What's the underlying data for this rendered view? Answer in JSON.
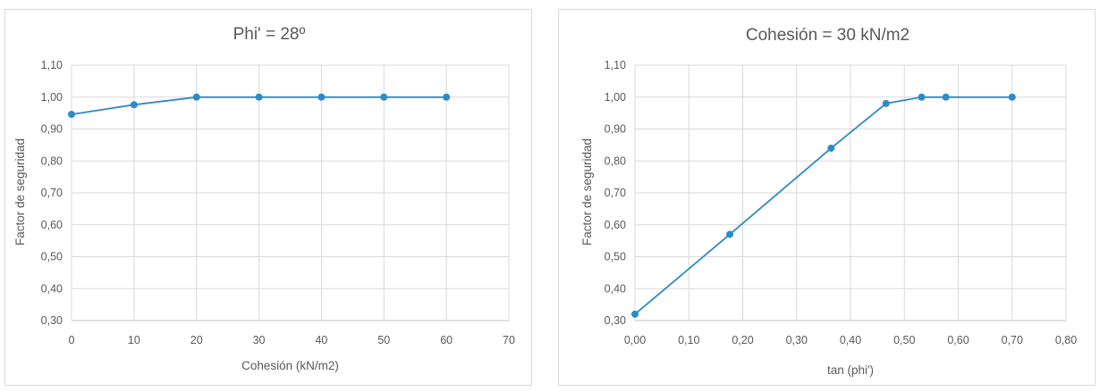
{
  "chart_data": [
    {
      "type": "line",
      "title": "Phi' = 28º",
      "xlabel": "Cohesión (kN/m2)",
      "ylabel": "Factor de seguridad",
      "xlim": [
        0,
        70
      ],
      "ylim": [
        0.3,
        1.1
      ],
      "x_ticks": [
        "0",
        "10",
        "20",
        "30",
        "40",
        "50",
        "60",
        "70"
      ],
      "y_ticks": [
        "0,30",
        "0,40",
        "0,50",
        "0,60",
        "0,70",
        "0,80",
        "0,90",
        "1,00",
        "1,10"
      ],
      "grid": true,
      "color": "#2e8bc9",
      "series": [
        {
          "x": [
            0,
            10,
            20,
            30,
            40,
            50,
            60
          ],
          "y": [
            0.946,
            0.976,
            1.0,
            1.0,
            1.0,
            1.0,
            1.0
          ]
        }
      ]
    },
    {
      "type": "line",
      "title": "Cohesión = 30 kN/m2",
      "xlabel": "tan (phi')",
      "ylabel": "Factor de seguridad",
      "xlim": [
        0,
        0.8
      ],
      "ylim": [
        0.3,
        1.1
      ],
      "x_ticks": [
        "0,00",
        "0,10",
        "0,20",
        "0,30",
        "0,40",
        "0,50",
        "0,60",
        "0,70",
        "0,80"
      ],
      "y_ticks": [
        "0,30",
        "0,40",
        "0,50",
        "0,60",
        "0,70",
        "0,80",
        "0,90",
        "1,00",
        "1,10"
      ],
      "grid": true,
      "color": "#2e8bc9",
      "series": [
        {
          "x": [
            0.0,
            0.176,
            0.364,
            0.466,
            0.532,
            0.577,
            0.7
          ],
          "y": [
            0.32,
            0.57,
            0.84,
            0.98,
            1.0,
            1.0,
            1.0
          ]
        }
      ]
    }
  ]
}
